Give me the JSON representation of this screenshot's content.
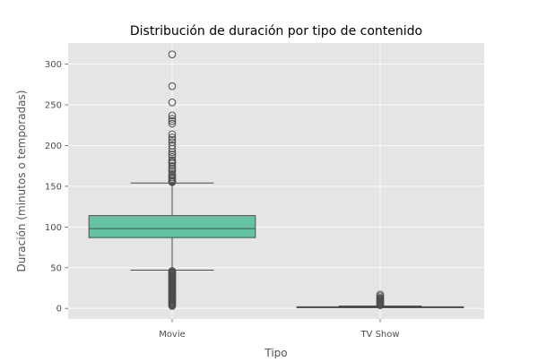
{
  "chart_data": {
    "type": "box",
    "title": "Distribución de duración por tipo de contenido",
    "xlabel": "Tipo",
    "ylabel": "Duración (minutos o temporadas)",
    "categories": [
      "Movie",
      "TV Show"
    ],
    "ylim": [
      -13,
      326
    ],
    "yticks": [
      0,
      50,
      100,
      150,
      200,
      250,
      300
    ],
    "grid": true,
    "colors": {
      "background": "#e5e5e5",
      "grid": "#ffffff",
      "box_Movie": "#66c2a5",
      "box_TV Show": "#fc8d62",
      "line": "#4d4d4d",
      "outlier": "#4d4d4d"
    },
    "series": [
      {
        "category": "Movie",
        "whisker_low": 47,
        "q1": 87,
        "median": 98,
        "q3": 114,
        "whisker_high": 154,
        "outliers": [
          312,
          273,
          253,
          237,
          233,
          230,
          227,
          214,
          210,
          207,
          204,
          200,
          196,
          192,
          189,
          186,
          182,
          180,
          178,
          175,
          172,
          170,
          168,
          165,
          163,
          161,
          159,
          157,
          156,
          155,
          46,
          45,
          44,
          43,
          42,
          41,
          40,
          39,
          38,
          37,
          36,
          35,
          34,
          33,
          32,
          31,
          30,
          29,
          28,
          27,
          26,
          25,
          24,
          23,
          22,
          21,
          20,
          19,
          18,
          17,
          16,
          15,
          14,
          13,
          12,
          11,
          10,
          9,
          8,
          7,
          6,
          5,
          4,
          3
        ]
      },
      {
        "category": "TV Show",
        "whisker_low": 1,
        "q1": 1,
        "median": 1,
        "q3": 2,
        "whisker_high": 3,
        "outliers": [
          4,
          5,
          6,
          7,
          8,
          9,
          10,
          11,
          12,
          13,
          15,
          17
        ]
      }
    ]
  }
}
